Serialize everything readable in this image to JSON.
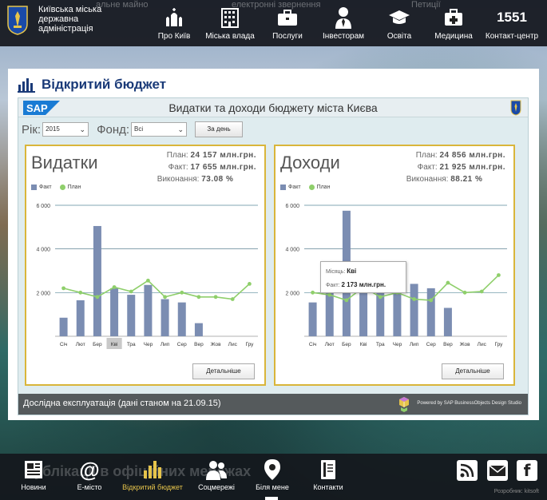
{
  "header": {
    "org_name": "Київська міська державна адміністрація",
    "ghost_links": [
      "альне майно",
      "електронні звернення",
      "Петиції"
    ],
    "nav": [
      {
        "label": "Про Київ",
        "icon": "church-icon"
      },
      {
        "label": "Міська влада",
        "icon": "building-icon"
      },
      {
        "label": "Послуги",
        "icon": "briefcase-icon"
      },
      {
        "label": "Інвесторам",
        "icon": "businessman-icon"
      },
      {
        "label": "Освіта",
        "icon": "graduation-cap-icon"
      },
      {
        "label": "Медицина",
        "icon": "medical-kit-icon"
      },
      {
        "label": "Контакт-центр",
        "number": "1551"
      }
    ]
  },
  "panel": {
    "title": "Відкритий бюджет",
    "app_title": "Видатки та доходи бюджету міста Києва",
    "sap_logo": "SAP",
    "filters": {
      "year_label": "Рік:",
      "year_value": "2015",
      "fund_label": "Фонд:",
      "fund_value": "Всі",
      "date_button": "За день"
    },
    "footer_note": "Дослідна експлуатація (дані станом на 21.09.15)",
    "powered_by": "Powered by SAP BusinessObjects Design Studio"
  },
  "expenses": {
    "title": "Видатки",
    "plan_label": "План:",
    "plan_value": "24 157 млн.грн.",
    "fact_label": "Факт:",
    "fact_value": "17 655 млн.грн.",
    "exec_label": "Виконання:",
    "exec_value": "73.08 %",
    "legend_fact": "Факт",
    "legend_plan": "План",
    "detail_button": "Детальніше"
  },
  "revenues": {
    "title": "Доходи",
    "plan_label": "План:",
    "plan_value": "24 856 млн.грн.",
    "fact_label": "Факт:",
    "fact_value": "21 925 млн.грн.",
    "exec_label": "Виконання:",
    "exec_value": "88.21 %",
    "legend_fact": "Факт",
    "legend_plan": "План",
    "detail_button": "Детальніше",
    "tooltip": {
      "month_label": "Місяць:",
      "month_value": "Кві",
      "fact_label": "Факт:",
      "fact_value": "2 173 млн.грн."
    }
  },
  "chart_data": [
    {
      "type": "bar",
      "categories": [
        "Січ",
        "Лют",
        "Бер",
        "Кві",
        "Тра",
        "Чер",
        "Лип",
        "Сер",
        "Вер",
        "Жов",
        "Лис",
        "Гру"
      ],
      "series": [
        {
          "name": "Факт",
          "values": [
            850,
            1650,
            5050,
            2200,
            1900,
            2350,
            1700,
            1550,
            600,
            null,
            null,
            null
          ]
        },
        {
          "name": "План",
          "values": [
            2200,
            2000,
            1800,
            2250,
            2050,
            2550,
            1800,
            2000,
            1800,
            1800,
            1700,
            2400
          ]
        }
      ],
      "yticks": [
        2000,
        4000,
        6000
      ],
      "ytick_labels": [
        "2 000",
        "4 000",
        "6 000"
      ],
      "ylim": [
        0,
        6000
      ],
      "highlight": "Кві",
      "colors": {
        "fact": "#7b8db2",
        "plan": "#8fcf6b"
      }
    },
    {
      "type": "bar",
      "categories": [
        "Січ",
        "Лют",
        "Бер",
        "Кві",
        "Тра",
        "Чер",
        "Лип",
        "Сер",
        "Вер",
        "Жов",
        "Лис",
        "Гру"
      ],
      "series": [
        {
          "name": "Факт",
          "values": [
            1550,
            2000,
            5750,
            2173,
            2150,
            2150,
            2400,
            2200,
            1300,
            null,
            null,
            null
          ]
        },
        {
          "name": "План",
          "values": [
            2000,
            1900,
            1650,
            2250,
            1800,
            2000,
            1700,
            1650,
            2450,
            2000,
            2050,
            2800
          ]
        }
      ],
      "yticks": [
        2000,
        4000,
        6000
      ],
      "ytick_labels": [
        "2 000",
        "4 000",
        "6 000"
      ],
      "ylim": [
        0,
        6000
      ],
      "colors": {
        "fact": "#7b8db2",
        "plan": "#8fcf6b"
      }
    }
  ],
  "bottom": {
    "ghost_text": "Публікації в офіційних мережах",
    "nav": [
      {
        "label": "Новини",
        "icon": "newspaper-icon"
      },
      {
        "label": "Е-місто",
        "icon": "at-sign-icon"
      },
      {
        "label": "Відкритий бюджет",
        "icon": "budget-chart-icon"
      },
      {
        "label": "Соцмережі",
        "icon": "people-icon"
      },
      {
        "label": "Біля мене",
        "icon": "map-pin-icon"
      },
      {
        "label": "Контакти",
        "icon": "address-book-icon"
      }
    ],
    "developer": "Розробник: kitsoft"
  }
}
